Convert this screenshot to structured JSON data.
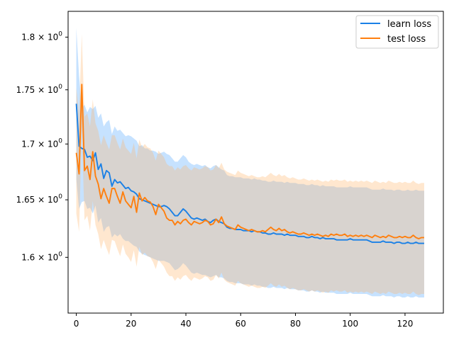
{
  "chart_data": {
    "type": "line",
    "xlim": [
      -3,
      134
    ],
    "ylim": [
      1.553,
      1.825
    ],
    "yscale": "log",
    "x_ticks": [
      0,
      20,
      40,
      60,
      80,
      100,
      120
    ],
    "x_tick_labels": [
      "0",
      "20",
      "40",
      "60",
      "80",
      "100",
      "120"
    ],
    "y_ticks": [
      1.6,
      1.65,
      1.7,
      1.75,
      1.8
    ],
    "y_tick_labels": [
      {
        "base": "1.6",
        "mult": "×",
        "exp_base": "10",
        "exp": "0"
      },
      {
        "base": "1.65",
        "mult": "×",
        "exp_base": "10",
        "exp": "0"
      },
      {
        "base": "1.7",
        "mult": "×",
        "exp_base": "10",
        "exp": "0"
      },
      {
        "base": "1.75",
        "mult": "×",
        "exp_base": "10",
        "exp": "0"
      },
      {
        "base": "1.8",
        "mult": "×",
        "exp_base": "10",
        "exp": "0"
      }
    ],
    "grid": false,
    "legend_position": "top-right",
    "series": [
      {
        "name": "learn loss",
        "color": "#1a80e6",
        "band_color": "#4da6ff",
        "band_opacity": 0.32,
        "x_start": 0,
        "values": [
          1.737,
          1.698,
          1.696,
          1.695,
          1.688,
          1.689,
          1.685,
          1.692,
          1.677,
          1.682,
          1.669,
          1.676,
          1.674,
          1.662,
          1.668,
          1.665,
          1.666,
          1.663,
          1.66,
          1.661,
          1.658,
          1.657,
          1.655,
          1.651,
          1.65,
          1.649,
          1.648,
          1.647,
          1.646,
          1.645,
          1.644,
          1.644,
          1.645,
          1.644,
          1.642,
          1.639,
          1.636,
          1.636,
          1.639,
          1.642,
          1.64,
          1.637,
          1.634,
          1.633,
          1.634,
          1.633,
          1.632,
          1.633,
          1.631,
          1.63,
          1.632,
          1.633,
          1.631,
          1.63,
          1.629,
          1.626,
          1.625,
          1.625,
          1.624,
          1.624,
          1.624,
          1.623,
          1.623,
          1.623,
          1.622,
          1.623,
          1.622,
          1.622,
          1.621,
          1.621,
          1.62,
          1.62,
          1.621,
          1.62,
          1.62,
          1.62,
          1.619,
          1.62,
          1.619,
          1.619,
          1.619,
          1.618,
          1.618,
          1.618,
          1.617,
          1.617,
          1.618,
          1.617,
          1.617,
          1.616,
          1.617,
          1.616,
          1.616,
          1.616,
          1.616,
          1.615,
          1.615,
          1.615,
          1.615,
          1.615,
          1.616,
          1.615,
          1.615,
          1.615,
          1.615,
          1.615,
          1.615,
          1.614,
          1.613,
          1.613,
          1.613,
          1.613,
          1.614,
          1.613,
          1.613,
          1.613,
          1.612,
          1.613,
          1.613,
          1.612,
          1.612,
          1.613,
          1.612,
          1.612,
          1.613,
          1.612,
          1.612,
          1.612
        ],
        "upper": [
          1.809,
          1.763,
          1.733,
          1.736,
          1.729,
          1.734,
          1.732,
          1.735,
          1.724,
          1.728,
          1.716,
          1.72,
          1.722,
          1.709,
          1.716,
          1.712,
          1.713,
          1.71,
          1.707,
          1.708,
          1.707,
          1.705,
          1.703,
          1.698,
          1.699,
          1.696,
          1.696,
          1.694,
          1.694,
          1.693,
          1.691,
          1.692,
          1.693,
          1.691,
          1.69,
          1.687,
          1.684,
          1.684,
          1.687,
          1.69,
          1.688,
          1.684,
          1.682,
          1.681,
          1.682,
          1.681,
          1.68,
          1.681,
          1.679,
          1.678,
          1.68,
          1.681,
          1.679,
          1.677,
          1.676,
          1.672,
          1.671,
          1.671,
          1.67,
          1.67,
          1.67,
          1.669,
          1.669,
          1.669,
          1.668,
          1.669,
          1.668,
          1.668,
          1.667,
          1.667,
          1.666,
          1.666,
          1.667,
          1.666,
          1.666,
          1.666,
          1.665,
          1.666,
          1.665,
          1.665,
          1.665,
          1.664,
          1.664,
          1.664,
          1.663,
          1.663,
          1.664,
          1.663,
          1.663,
          1.662,
          1.663,
          1.662,
          1.662,
          1.662,
          1.662,
          1.661,
          1.661,
          1.661,
          1.661,
          1.661,
          1.662,
          1.661,
          1.661,
          1.661,
          1.661,
          1.661,
          1.661,
          1.66,
          1.659,
          1.659,
          1.659,
          1.659,
          1.66,
          1.659,
          1.659,
          1.659,
          1.658,
          1.659,
          1.659,
          1.658,
          1.658,
          1.659,
          1.658,
          1.658,
          1.659,
          1.658,
          1.658,
          1.658
        ],
        "lower": [
          1.668,
          1.642,
          1.648,
          1.649,
          1.642,
          1.643,
          1.638,
          1.645,
          1.63,
          1.634,
          1.622,
          1.626,
          1.627,
          1.617,
          1.62,
          1.618,
          1.62,
          1.616,
          1.614,
          1.614,
          1.612,
          1.61,
          1.609,
          1.605,
          1.603,
          1.602,
          1.601,
          1.6,
          1.599,
          1.598,
          1.597,
          1.597,
          1.597,
          1.596,
          1.595,
          1.592,
          1.589,
          1.59,
          1.592,
          1.595,
          1.593,
          1.59,
          1.587,
          1.586,
          1.587,
          1.586,
          1.585,
          1.585,
          1.584,
          1.583,
          1.584,
          1.585,
          1.583,
          1.583,
          1.582,
          1.58,
          1.579,
          1.579,
          1.578,
          1.578,
          1.578,
          1.577,
          1.577,
          1.577,
          1.576,
          1.577,
          1.576,
          1.576,
          1.575,
          1.575,
          1.574,
          1.574,
          1.575,
          1.574,
          1.574,
          1.574,
          1.573,
          1.574,
          1.573,
          1.573,
          1.573,
          1.572,
          1.572,
          1.572,
          1.571,
          1.571,
          1.572,
          1.571,
          1.571,
          1.57,
          1.571,
          1.57,
          1.57,
          1.57,
          1.57,
          1.569,
          1.569,
          1.569,
          1.569,
          1.569,
          1.57,
          1.569,
          1.569,
          1.569,
          1.569,
          1.569,
          1.569,
          1.568,
          1.567,
          1.567,
          1.567,
          1.567,
          1.568,
          1.567,
          1.567,
          1.567,
          1.566,
          1.567,
          1.567,
          1.566,
          1.566,
          1.567,
          1.566,
          1.566,
          1.567,
          1.566,
          1.566,
          1.566
        ]
      },
      {
        "name": "test loss",
        "color": "#ff7f0e",
        "band_color": "#ffb36b",
        "band_opacity": 0.32,
        "x_start": 0,
        "values": [
          1.692,
          1.673,
          1.755,
          1.676,
          1.68,
          1.668,
          1.693,
          1.671,
          1.664,
          1.651,
          1.66,
          1.653,
          1.647,
          1.66,
          1.66,
          1.653,
          1.647,
          1.657,
          1.649,
          1.646,
          1.643,
          1.653,
          1.639,
          1.656,
          1.649,
          1.652,
          1.649,
          1.648,
          1.644,
          1.637,
          1.646,
          1.643,
          1.64,
          1.634,
          1.632,
          1.632,
          1.628,
          1.631,
          1.629,
          1.632,
          1.633,
          1.63,
          1.628,
          1.631,
          1.63,
          1.629,
          1.63,
          1.632,
          1.631,
          1.628,
          1.629,
          1.633,
          1.63,
          1.635,
          1.629,
          1.627,
          1.626,
          1.625,
          1.624,
          1.628,
          1.626,
          1.625,
          1.624,
          1.623,
          1.624,
          1.623,
          1.622,
          1.622,
          1.623,
          1.622,
          1.624,
          1.626,
          1.624,
          1.623,
          1.625,
          1.623,
          1.624,
          1.622,
          1.621,
          1.622,
          1.621,
          1.62,
          1.62,
          1.621,
          1.62,
          1.619,
          1.62,
          1.619,
          1.62,
          1.619,
          1.618,
          1.619,
          1.618,
          1.62,
          1.619,
          1.62,
          1.619,
          1.619,
          1.62,
          1.618,
          1.619,
          1.618,
          1.619,
          1.618,
          1.619,
          1.618,
          1.619,
          1.618,
          1.617,
          1.619,
          1.618,
          1.617,
          1.618,
          1.617,
          1.619,
          1.618,
          1.617,
          1.617,
          1.618,
          1.617,
          1.618,
          1.617,
          1.617,
          1.619,
          1.617,
          1.616,
          1.617,
          1.617
        ],
        "upper": [
          1.752,
          1.728,
          1.803,
          1.725,
          1.728,
          1.716,
          1.741,
          1.719,
          1.712,
          1.699,
          1.708,
          1.701,
          1.695,
          1.708,
          1.708,
          1.701,
          1.695,
          1.705,
          1.697,
          1.694,
          1.691,
          1.701,
          1.687,
          1.704,
          1.697,
          1.7,
          1.697,
          1.696,
          1.692,
          1.685,
          1.694,
          1.691,
          1.688,
          1.682,
          1.68,
          1.68,
          1.676,
          1.679,
          1.677,
          1.68,
          1.681,
          1.678,
          1.676,
          1.679,
          1.678,
          1.677,
          1.678,
          1.68,
          1.679,
          1.676,
          1.677,
          1.681,
          1.678,
          1.683,
          1.677,
          1.675,
          1.674,
          1.673,
          1.672,
          1.676,
          1.674,
          1.673,
          1.672,
          1.671,
          1.672,
          1.671,
          1.67,
          1.67,
          1.671,
          1.67,
          1.672,
          1.674,
          1.672,
          1.671,
          1.673,
          1.671,
          1.672,
          1.67,
          1.669,
          1.67,
          1.669,
          1.668,
          1.668,
          1.669,
          1.668,
          1.667,
          1.668,
          1.667,
          1.668,
          1.667,
          1.666,
          1.667,
          1.666,
          1.668,
          1.667,
          1.668,
          1.667,
          1.667,
          1.668,
          1.666,
          1.667,
          1.666,
          1.667,
          1.666,
          1.667,
          1.666,
          1.667,
          1.666,
          1.665,
          1.667,
          1.666,
          1.665,
          1.666,
          1.665,
          1.667,
          1.666,
          1.665,
          1.665,
          1.666,
          1.665,
          1.666,
          1.665,
          1.665,
          1.667,
          1.665,
          1.664,
          1.665,
          1.665
        ],
        "lower": [
          1.638,
          1.622,
          1.712,
          1.632,
          1.636,
          1.623,
          1.649,
          1.628,
          1.62,
          1.607,
          1.615,
          1.608,
          1.602,
          1.615,
          1.614,
          1.607,
          1.601,
          1.611,
          1.603,
          1.6,
          1.596,
          1.606,
          1.592,
          1.609,
          1.602,
          1.604,
          1.601,
          1.6,
          1.596,
          1.59,
          1.598,
          1.595,
          1.592,
          1.587,
          1.584,
          1.584,
          1.58,
          1.583,
          1.581,
          1.584,
          1.585,
          1.582,
          1.58,
          1.583,
          1.582,
          1.581,
          1.582,
          1.584,
          1.583,
          1.58,
          1.581,
          1.585,
          1.582,
          1.587,
          1.581,
          1.579,
          1.578,
          1.577,
          1.576,
          1.58,
          1.578,
          1.577,
          1.576,
          1.575,
          1.576,
          1.575,
          1.574,
          1.574,
          1.575,
          1.574,
          1.576,
          1.578,
          1.576,
          1.575,
          1.577,
          1.575,
          1.576,
          1.574,
          1.573,
          1.574,
          1.573,
          1.572,
          1.572,
          1.573,
          1.572,
          1.571,
          1.572,
          1.571,
          1.572,
          1.571,
          1.57,
          1.571,
          1.57,
          1.572,
          1.571,
          1.572,
          1.571,
          1.571,
          1.572,
          1.57,
          1.571,
          1.57,
          1.571,
          1.57,
          1.571,
          1.57,
          1.571,
          1.57,
          1.569,
          1.571,
          1.57,
          1.569,
          1.57,
          1.569,
          1.571,
          1.57,
          1.569,
          1.569,
          1.57,
          1.569,
          1.57,
          1.569,
          1.569,
          1.571,
          1.569,
          1.568,
          1.569,
          1.569
        ]
      }
    ]
  }
}
